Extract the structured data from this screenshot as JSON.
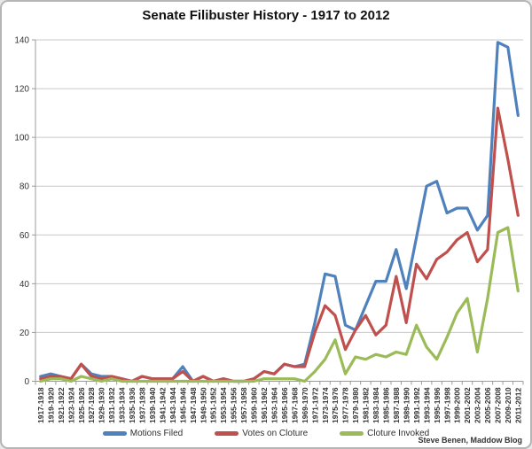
{
  "attribution": "Steve Benen, Maddow Blog",
  "chart_data": {
    "type": "line",
    "title": "Senate Filibuster History - 1917 to 2012",
    "xlabel": "",
    "ylabel": "",
    "ylim": [
      0,
      140
    ],
    "yticks": [
      0,
      20,
      40,
      60,
      80,
      100,
      120,
      140
    ],
    "grid": true,
    "legend_position": "bottom",
    "axis_color": "#9b9b9b",
    "grid_color": "#c7c7c7",
    "tick_label_color": "#333333",
    "categories": [
      "1917-1918",
      "1919-1920",
      "1921-1922",
      "1923-1924",
      "1925-1926",
      "1927-1928",
      "1929-1930",
      "1931-1932",
      "1933-1934",
      "1935-1936",
      "1937-1938",
      "1939-1940",
      "1941-1942",
      "1943-1944",
      "1945-1946",
      "1947-1948",
      "1949-1950",
      "1951-1952",
      "1953-1954",
      "1955-1956",
      "1957-1958",
      "1959-1960",
      "1961-1962",
      "1963-1964",
      "1965-1966",
      "1967-1968",
      "1969-1970",
      "1971-1972",
      "1973-1974",
      "1975-1976",
      "1977-1978",
      "1979-1980",
      "1981-1982",
      "1983-1984",
      "1985-1986",
      "1987-1988",
      "1989-1990",
      "1991-1992",
      "1993-1994",
      "1995-1996",
      "1997-1998",
      "1999-2000",
      "2001-2002",
      "2003-2004",
      "2005-2006",
      "2007-2008",
      "2009-2010",
      "2011-2012"
    ],
    "series": [
      {
        "name": "Motions Filed",
        "color": "#4F81BD",
        "values": [
          2,
          3,
          2,
          1,
          7,
          3,
          2,
          2,
          1,
          0,
          2,
          1,
          1,
          1,
          6,
          0,
          2,
          0,
          1,
          0,
          0,
          1,
          4,
          3,
          7,
          6,
          7,
          24,
          44,
          43,
          23,
          21,
          31,
          41,
          41,
          54,
          38,
          59,
          80,
          82,
          69,
          71,
          71,
          62,
          68,
          139,
          137,
          109
        ]
      },
      {
        "name": "Votes on Cloture",
        "color": "#C0504D",
        "values": [
          1,
          2,
          2,
          1,
          7,
          2,
          1,
          2,
          1,
          0,
          2,
          1,
          1,
          1,
          4,
          0,
          2,
          0,
          1,
          0,
          0,
          1,
          4,
          3,
          7,
          6,
          6,
          20,
          31,
          27,
          13,
          21,
          27,
          19,
          23,
          43,
          24,
          48,
          42,
          50,
          53,
          58,
          61,
          49,
          54,
          112,
          91,
          68
        ]
      },
      {
        "name": "Cloture Invoked",
        "color": "#9BBB59",
        "values": [
          0,
          1,
          1,
          0,
          2,
          1,
          0,
          1,
          0,
          0,
          0,
          0,
          0,
          0,
          0,
          0,
          0,
          0,
          0,
          0,
          0,
          0,
          1,
          1,
          1,
          1,
          0,
          4,
          9,
          17,
          3,
          10,
          9,
          11,
          10,
          12,
          11,
          23,
          14,
          9,
          18,
          28,
          34,
          12,
          34,
          61,
          63,
          37
        ]
      }
    ]
  }
}
